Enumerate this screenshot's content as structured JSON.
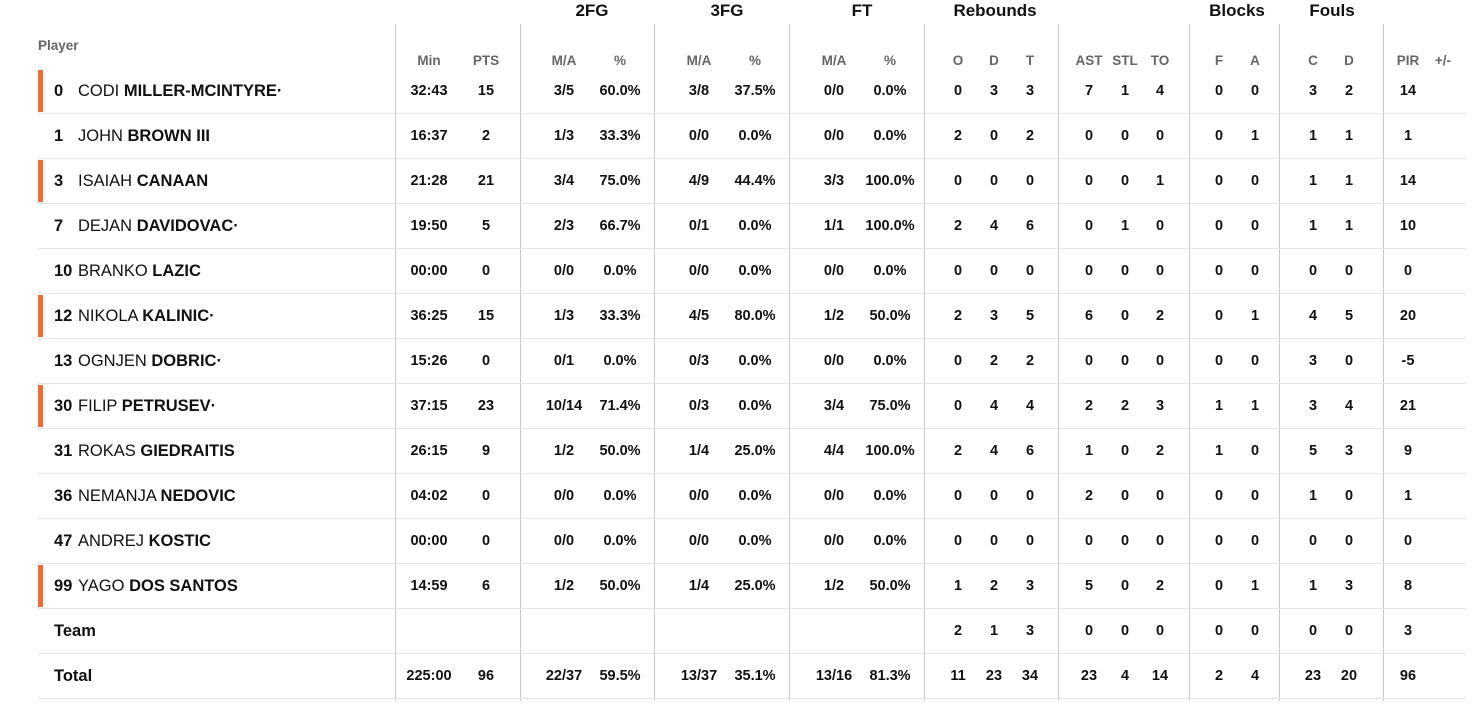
{
  "groups": {
    "fg2": "2FG",
    "fg3": "3FG",
    "ft": "FT",
    "rebounds": "Rebounds",
    "blocks": "Blocks",
    "fouls": "Fouls"
  },
  "columns": {
    "player": "Player",
    "min": "Min",
    "pts": "PTS",
    "fg2_ma": "M/A",
    "fg2_pct": "%",
    "fg3_ma": "M/A",
    "fg3_pct": "%",
    "ft_ma": "M/A",
    "ft_pct": "%",
    "reb_o": "O",
    "reb_d": "D",
    "reb_t": "T",
    "ast": "AST",
    "stl": "STL",
    "to": "TO",
    "blk_f": "F",
    "blk_a": "A",
    "foul_c": "C",
    "foul_d": "D",
    "pir": "PIR",
    "pm": "+/-"
  },
  "accent_color": "#f26b36",
  "rows": [
    {
      "num": "0",
      "first": "CODI",
      "last": "MILLER-MCINTYRE",
      "mark": "·",
      "starter": true,
      "min": "32:43",
      "pts": "15",
      "fg2_ma": "3/5",
      "fg2_pct": "60.0%",
      "fg3_ma": "3/8",
      "fg3_pct": "37.5%",
      "ft_ma": "0/0",
      "ft_pct": "0.0%",
      "reb_o": "0",
      "reb_d": "3",
      "reb_t": "3",
      "ast": "7",
      "stl": "1",
      "to": "4",
      "blk_f": "0",
      "blk_a": "0",
      "foul_c": "3",
      "foul_d": "2",
      "pir": "14"
    },
    {
      "num": "1",
      "first": "JOHN",
      "last": "BROWN III",
      "mark": "",
      "starter": false,
      "min": "16:37",
      "pts": "2",
      "fg2_ma": "1/3",
      "fg2_pct": "33.3%",
      "fg3_ma": "0/0",
      "fg3_pct": "0.0%",
      "ft_ma": "0/0",
      "ft_pct": "0.0%",
      "reb_o": "2",
      "reb_d": "0",
      "reb_t": "2",
      "ast": "0",
      "stl": "0",
      "to": "0",
      "blk_f": "0",
      "blk_a": "1",
      "foul_c": "1",
      "foul_d": "1",
      "pir": "1"
    },
    {
      "num": "3",
      "first": "ISAIAH",
      "last": "CANAAN",
      "mark": "",
      "starter": true,
      "min": "21:28",
      "pts": "21",
      "fg2_ma": "3/4",
      "fg2_pct": "75.0%",
      "fg3_ma": "4/9",
      "fg3_pct": "44.4%",
      "ft_ma": "3/3",
      "ft_pct": "100.0%",
      "reb_o": "0",
      "reb_d": "0",
      "reb_t": "0",
      "ast": "0",
      "stl": "0",
      "to": "1",
      "blk_f": "0",
      "blk_a": "0",
      "foul_c": "1",
      "foul_d": "1",
      "pir": "14"
    },
    {
      "num": "7",
      "first": "DEJAN",
      "last": "DAVIDOVAC",
      "mark": "·",
      "starter": false,
      "min": "19:50",
      "pts": "5",
      "fg2_ma": "2/3",
      "fg2_pct": "66.7%",
      "fg3_ma": "0/1",
      "fg3_pct": "0.0%",
      "ft_ma": "1/1",
      "ft_pct": "100.0%",
      "reb_o": "2",
      "reb_d": "4",
      "reb_t": "6",
      "ast": "0",
      "stl": "1",
      "to": "0",
      "blk_f": "0",
      "blk_a": "0",
      "foul_c": "1",
      "foul_d": "1",
      "pir": "10"
    },
    {
      "num": "10",
      "first": "BRANKO",
      "last": "LAZIC",
      "mark": "",
      "starter": false,
      "min": "00:00",
      "pts": "0",
      "fg2_ma": "0/0",
      "fg2_pct": "0.0%",
      "fg3_ma": "0/0",
      "fg3_pct": "0.0%",
      "ft_ma": "0/0",
      "ft_pct": "0.0%",
      "reb_o": "0",
      "reb_d": "0",
      "reb_t": "0",
      "ast": "0",
      "stl": "0",
      "to": "0",
      "blk_f": "0",
      "blk_a": "0",
      "foul_c": "0",
      "foul_d": "0",
      "pir": "0"
    },
    {
      "num": "12",
      "first": "NIKOLA",
      "last": "KALINIC",
      "mark": "·",
      "starter": true,
      "min": "36:25",
      "pts": "15",
      "fg2_ma": "1/3",
      "fg2_pct": "33.3%",
      "fg3_ma": "4/5",
      "fg3_pct": "80.0%",
      "ft_ma": "1/2",
      "ft_pct": "50.0%",
      "reb_o": "2",
      "reb_d": "3",
      "reb_t": "5",
      "ast": "6",
      "stl": "0",
      "to": "2",
      "blk_f": "0",
      "blk_a": "1",
      "foul_c": "4",
      "foul_d": "5",
      "pir": "20"
    },
    {
      "num": "13",
      "first": "OGNJEN",
      "last": "DOBRIC",
      "mark": "·",
      "starter": false,
      "min": "15:26",
      "pts": "0",
      "fg2_ma": "0/1",
      "fg2_pct": "0.0%",
      "fg3_ma": "0/3",
      "fg3_pct": "0.0%",
      "ft_ma": "0/0",
      "ft_pct": "0.0%",
      "reb_o": "0",
      "reb_d": "2",
      "reb_t": "2",
      "ast": "0",
      "stl": "0",
      "to": "0",
      "blk_f": "0",
      "blk_a": "0",
      "foul_c": "3",
      "foul_d": "0",
      "pir": "-5"
    },
    {
      "num": "30",
      "first": "FILIP",
      "last": "PETRUSEV",
      "mark": "·",
      "starter": true,
      "min": "37:15",
      "pts": "23",
      "fg2_ma": "10/14",
      "fg2_pct": "71.4%",
      "fg3_ma": "0/3",
      "fg3_pct": "0.0%",
      "ft_ma": "3/4",
      "ft_pct": "75.0%",
      "reb_o": "0",
      "reb_d": "4",
      "reb_t": "4",
      "ast": "2",
      "stl": "2",
      "to": "3",
      "blk_f": "1",
      "blk_a": "1",
      "foul_c": "3",
      "foul_d": "4",
      "pir": "21"
    },
    {
      "num": "31",
      "first": "ROKAS",
      "last": "GIEDRAITIS",
      "mark": "",
      "starter": false,
      "min": "26:15",
      "pts": "9",
      "fg2_ma": "1/2",
      "fg2_pct": "50.0%",
      "fg3_ma": "1/4",
      "fg3_pct": "25.0%",
      "ft_ma": "4/4",
      "ft_pct": "100.0%",
      "reb_o": "2",
      "reb_d": "4",
      "reb_t": "6",
      "ast": "1",
      "stl": "0",
      "to": "2",
      "blk_f": "1",
      "blk_a": "0",
      "foul_c": "5",
      "foul_d": "3",
      "pir": "9"
    },
    {
      "num": "36",
      "first": "NEMANJA",
      "last": "NEDOVIC",
      "mark": "",
      "starter": false,
      "min": "04:02",
      "pts": "0",
      "fg2_ma": "0/0",
      "fg2_pct": "0.0%",
      "fg3_ma": "0/0",
      "fg3_pct": "0.0%",
      "ft_ma": "0/0",
      "ft_pct": "0.0%",
      "reb_o": "0",
      "reb_d": "0",
      "reb_t": "0",
      "ast": "2",
      "stl": "0",
      "to": "0",
      "blk_f": "0",
      "blk_a": "0",
      "foul_c": "1",
      "foul_d": "0",
      "pir": "1"
    },
    {
      "num": "47",
      "first": "ANDREJ",
      "last": "KOSTIC",
      "mark": "",
      "starter": false,
      "min": "00:00",
      "pts": "0",
      "fg2_ma": "0/0",
      "fg2_pct": "0.0%",
      "fg3_ma": "0/0",
      "fg3_pct": "0.0%",
      "ft_ma": "0/0",
      "ft_pct": "0.0%",
      "reb_o": "0",
      "reb_d": "0",
      "reb_t": "0",
      "ast": "0",
      "stl": "0",
      "to": "0",
      "blk_f": "0",
      "blk_a": "0",
      "foul_c": "0",
      "foul_d": "0",
      "pir": "0"
    },
    {
      "num": "99",
      "first": "YAGO",
      "last": "DOS SANTOS",
      "mark": "",
      "starter": true,
      "min": "14:59",
      "pts": "6",
      "fg2_ma": "1/2",
      "fg2_pct": "50.0%",
      "fg3_ma": "1/4",
      "fg3_pct": "25.0%",
      "ft_ma": "1/2",
      "ft_pct": "50.0%",
      "reb_o": "1",
      "reb_d": "2",
      "reb_t": "3",
      "ast": "5",
      "stl": "0",
      "to": "2",
      "blk_f": "0",
      "blk_a": "1",
      "foul_c": "1",
      "foul_d": "3",
      "pir": "8"
    }
  ],
  "team_row": {
    "label": "Team",
    "reb_o": "2",
    "reb_d": "1",
    "reb_t": "3",
    "ast": "0",
    "stl": "0",
    "to": "0",
    "blk_f": "0",
    "blk_a": "0",
    "foul_c": "0",
    "foul_d": "0",
    "pir": "3"
  },
  "total_row": {
    "label": "Total",
    "min": "225:00",
    "pts": "96",
    "fg2_ma": "22/37",
    "fg2_pct": "59.5%",
    "fg3_ma": "13/37",
    "fg3_pct": "35.1%",
    "ft_ma": "13/16",
    "ft_pct": "81.3%",
    "reb_o": "11",
    "reb_d": "23",
    "reb_t": "34",
    "ast": "23",
    "stl": "4",
    "to": "14",
    "blk_f": "2",
    "blk_a": "4",
    "foul_c": "23",
    "foul_d": "20",
    "pir": "96"
  }
}
